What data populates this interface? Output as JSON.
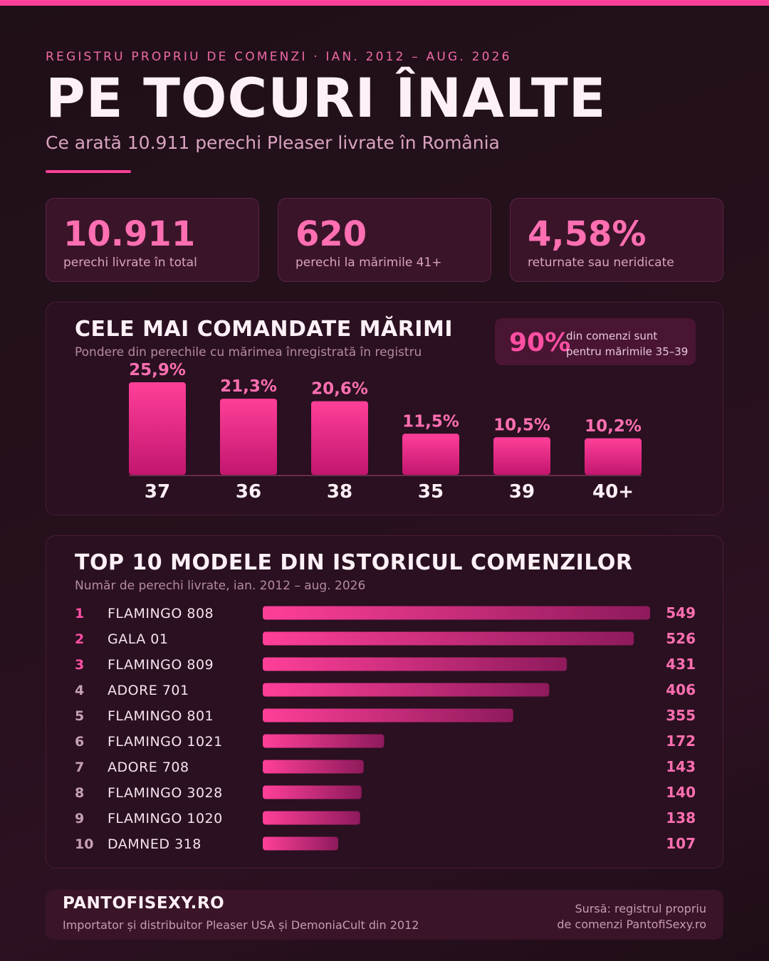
{
  "header": {
    "eyebrow": "REGISTRU PROPRIU DE COMENZI · IAN. 2012 – AUG. 2026",
    "title": "PE TOCURI ÎNALTE",
    "subtitle": "Ce arată 10.911 perechi Pleaser livrate în România"
  },
  "kpis": [
    {
      "value": "10.911",
      "label": "perechi livrate în total"
    },
    {
      "value": "620",
      "label": "perechi la mărimile 41+"
    },
    {
      "value": "4,58%",
      "label": "returnate sau neridicate"
    }
  ],
  "sizes_panel": {
    "title": "CELE MAI COMANDATE MĂRIMI",
    "subtitle": "Pondere din perechile cu mărimea înregistrată în registru",
    "callout_value": "90%",
    "callout_text_1": "din comenzi sunt",
    "callout_text_2": "pentru mărimile 35–39"
  },
  "models_panel": {
    "title": "TOP 10 MODELE DIN ISTORICUL COMENZILOR",
    "subtitle": "Număr de perechi livrate, ian. 2012 – aug. 2026"
  },
  "chart_data": [
    {
      "type": "bar",
      "title": "CELE MAI COMANDATE MĂRIMI",
      "categories": [
        "37",
        "36",
        "38",
        "35",
        "39",
        "40+"
      ],
      "values": [
        25.9,
        21.3,
        20.6,
        11.5,
        10.5,
        10.2
      ],
      "value_labels": [
        "25,9%",
        "21,3%",
        "20,6%",
        "11,5%",
        "10,5%",
        "10,2%"
      ],
      "ylim": [
        0,
        25.9
      ],
      "grid": false
    },
    {
      "type": "bar",
      "orientation": "horizontal",
      "title": "TOP 10 MODELE DIN ISTORICUL COMENZILOR",
      "ranks": [
        "1",
        "2",
        "3",
        "4",
        "5",
        "6",
        "7",
        "8",
        "9",
        "10"
      ],
      "categories": [
        "FLAMINGO 808",
        "GALA 01",
        "FLAMINGO 809",
        "ADORE 701",
        "FLAMINGO 801",
        "FLAMINGO 1021",
        "ADORE 708",
        "FLAMINGO 3028",
        "FLAMINGO 1020",
        "DAMNED 318"
      ],
      "values": [
        549,
        526,
        431,
        406,
        355,
        172,
        143,
        140,
        138,
        107
      ],
      "xlim": [
        0,
        549
      ],
      "grid": false
    }
  ],
  "colors": {
    "accent": "#ff3f99",
    "bar_top": "#ff3f99",
    "bar_bottom": "#c2166f",
    "value_text": "#ff6fb1",
    "rank_top3": "#ff4fa3",
    "rank_other": "#c6a0b4"
  },
  "footer": {
    "brand": "PANTOFISEXY.RO",
    "description": "Importator și distribuitor Pleaser USA și DemoniaCult din 2012",
    "source_1": "Sursă: registrul propriu",
    "source_2": "de comenzi PantofiSexy.ro"
  }
}
